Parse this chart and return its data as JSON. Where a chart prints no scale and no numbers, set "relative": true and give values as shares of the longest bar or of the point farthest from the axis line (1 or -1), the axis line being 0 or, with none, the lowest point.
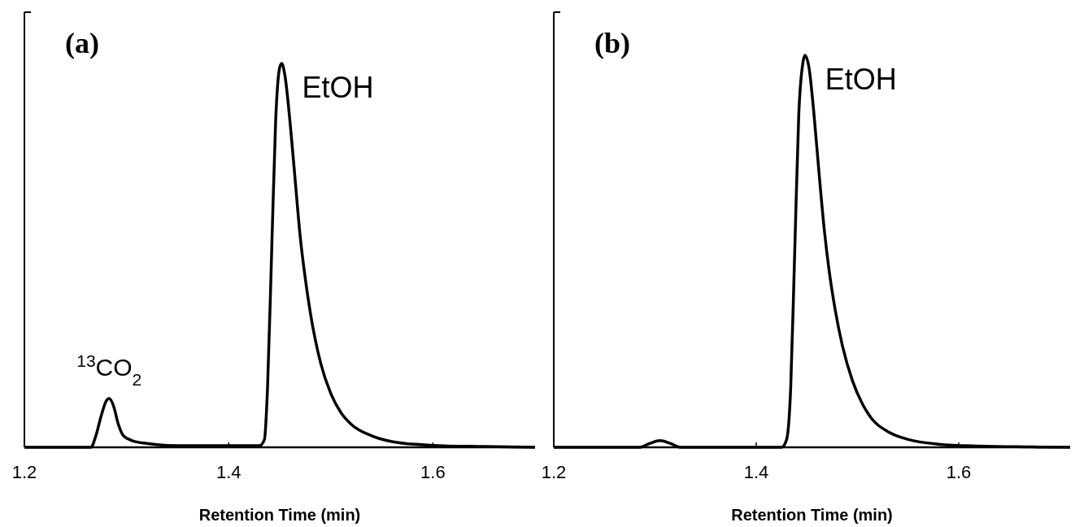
{
  "chart_data": [
    {
      "type": "line",
      "title": "(a)",
      "xlabel": "Retention Time (min)",
      "relative": true,
      "xlim": [
        1.2,
        1.7
      ],
      "xticks": [
        {
          "value": 1.2,
          "label": "1.2"
        },
        {
          "value": 1.4,
          "label": "1.4"
        },
        {
          "value": 1.6,
          "label": "1.6"
        }
      ],
      "annotations": [
        {
          "text": "EtOH",
          "x": 1.452,
          "y": 1
        },
        {
          "text": "$^{13}$CO$_{2}$",
          "x": 1.283,
          "y": 0.127
        }
      ],
      "marker": "none",
      "line_style": "solid",
      "grid": false,
      "series": [
        {
          "color": "#000000",
          "x": [
            1.2,
            1.265,
            1.27,
            1.275,
            1.28,
            1.283,
            1.287,
            1.292,
            1.297,
            1.305,
            1.32,
            1.34,
            1.36,
            1.43,
            1.435,
            1.438,
            1.442,
            1.446,
            1.45,
            1.452,
            1.455,
            1.46,
            1.465,
            1.47,
            1.475,
            1.48,
            1.49,
            1.5,
            1.51,
            1.52,
            1.54,
            1.56,
            1.6,
            1.65,
            1.7
          ],
          "values": [
            0,
            0,
            0.03,
            0.08,
            0.12,
            0.127,
            0.11,
            0.06,
            0.03,
            0.018,
            0.01,
            0.005,
            0.004,
            0.004,
            0.02,
            0.15,
            0.5,
            0.85,
            0.99,
            1,
            0.97,
            0.85,
            0.7,
            0.55,
            0.44,
            0.35,
            0.22,
            0.14,
            0.09,
            0.06,
            0.03,
            0.015,
            0.005,
            0.002,
            0
          ]
        }
      ]
    },
    {
      "type": "line",
      "title": "(b)",
      "xlabel": "Retention Time (min)",
      "relative": true,
      "xlim": [
        1.2,
        1.71
      ],
      "xticks": [
        {
          "value": 1.2,
          "label": "1.2"
        },
        {
          "value": 1.4,
          "label": "1.4"
        },
        {
          "value": 1.6,
          "label": "1.6"
        }
      ],
      "annotations": [
        {
          "text": "EtOH",
          "x": 1.448,
          "y": 1
        }
      ],
      "marker": "none",
      "line_style": "solid",
      "grid": false,
      "series": [
        {
          "color": "#000000",
          "x": [
            1.2,
            1.285,
            1.295,
            1.305,
            1.315,
            1.325,
            1.425,
            1.43,
            1.434,
            1.438,
            1.442,
            1.446,
            1.448,
            1.452,
            1.457,
            1.462,
            1.467,
            1.472,
            1.478,
            1.485,
            1.495,
            1.505,
            1.515,
            1.53,
            1.55,
            1.58,
            1.62,
            1.67,
            1.71
          ],
          "values": [
            0,
            0,
            0.01,
            0.017,
            0.01,
            0,
            0,
            0.02,
            0.15,
            0.5,
            0.85,
            0.98,
            1,
            0.97,
            0.85,
            0.7,
            0.56,
            0.45,
            0.35,
            0.26,
            0.17,
            0.11,
            0.07,
            0.04,
            0.02,
            0.008,
            0.003,
            0.001,
            0
          ]
        }
      ]
    }
  ]
}
